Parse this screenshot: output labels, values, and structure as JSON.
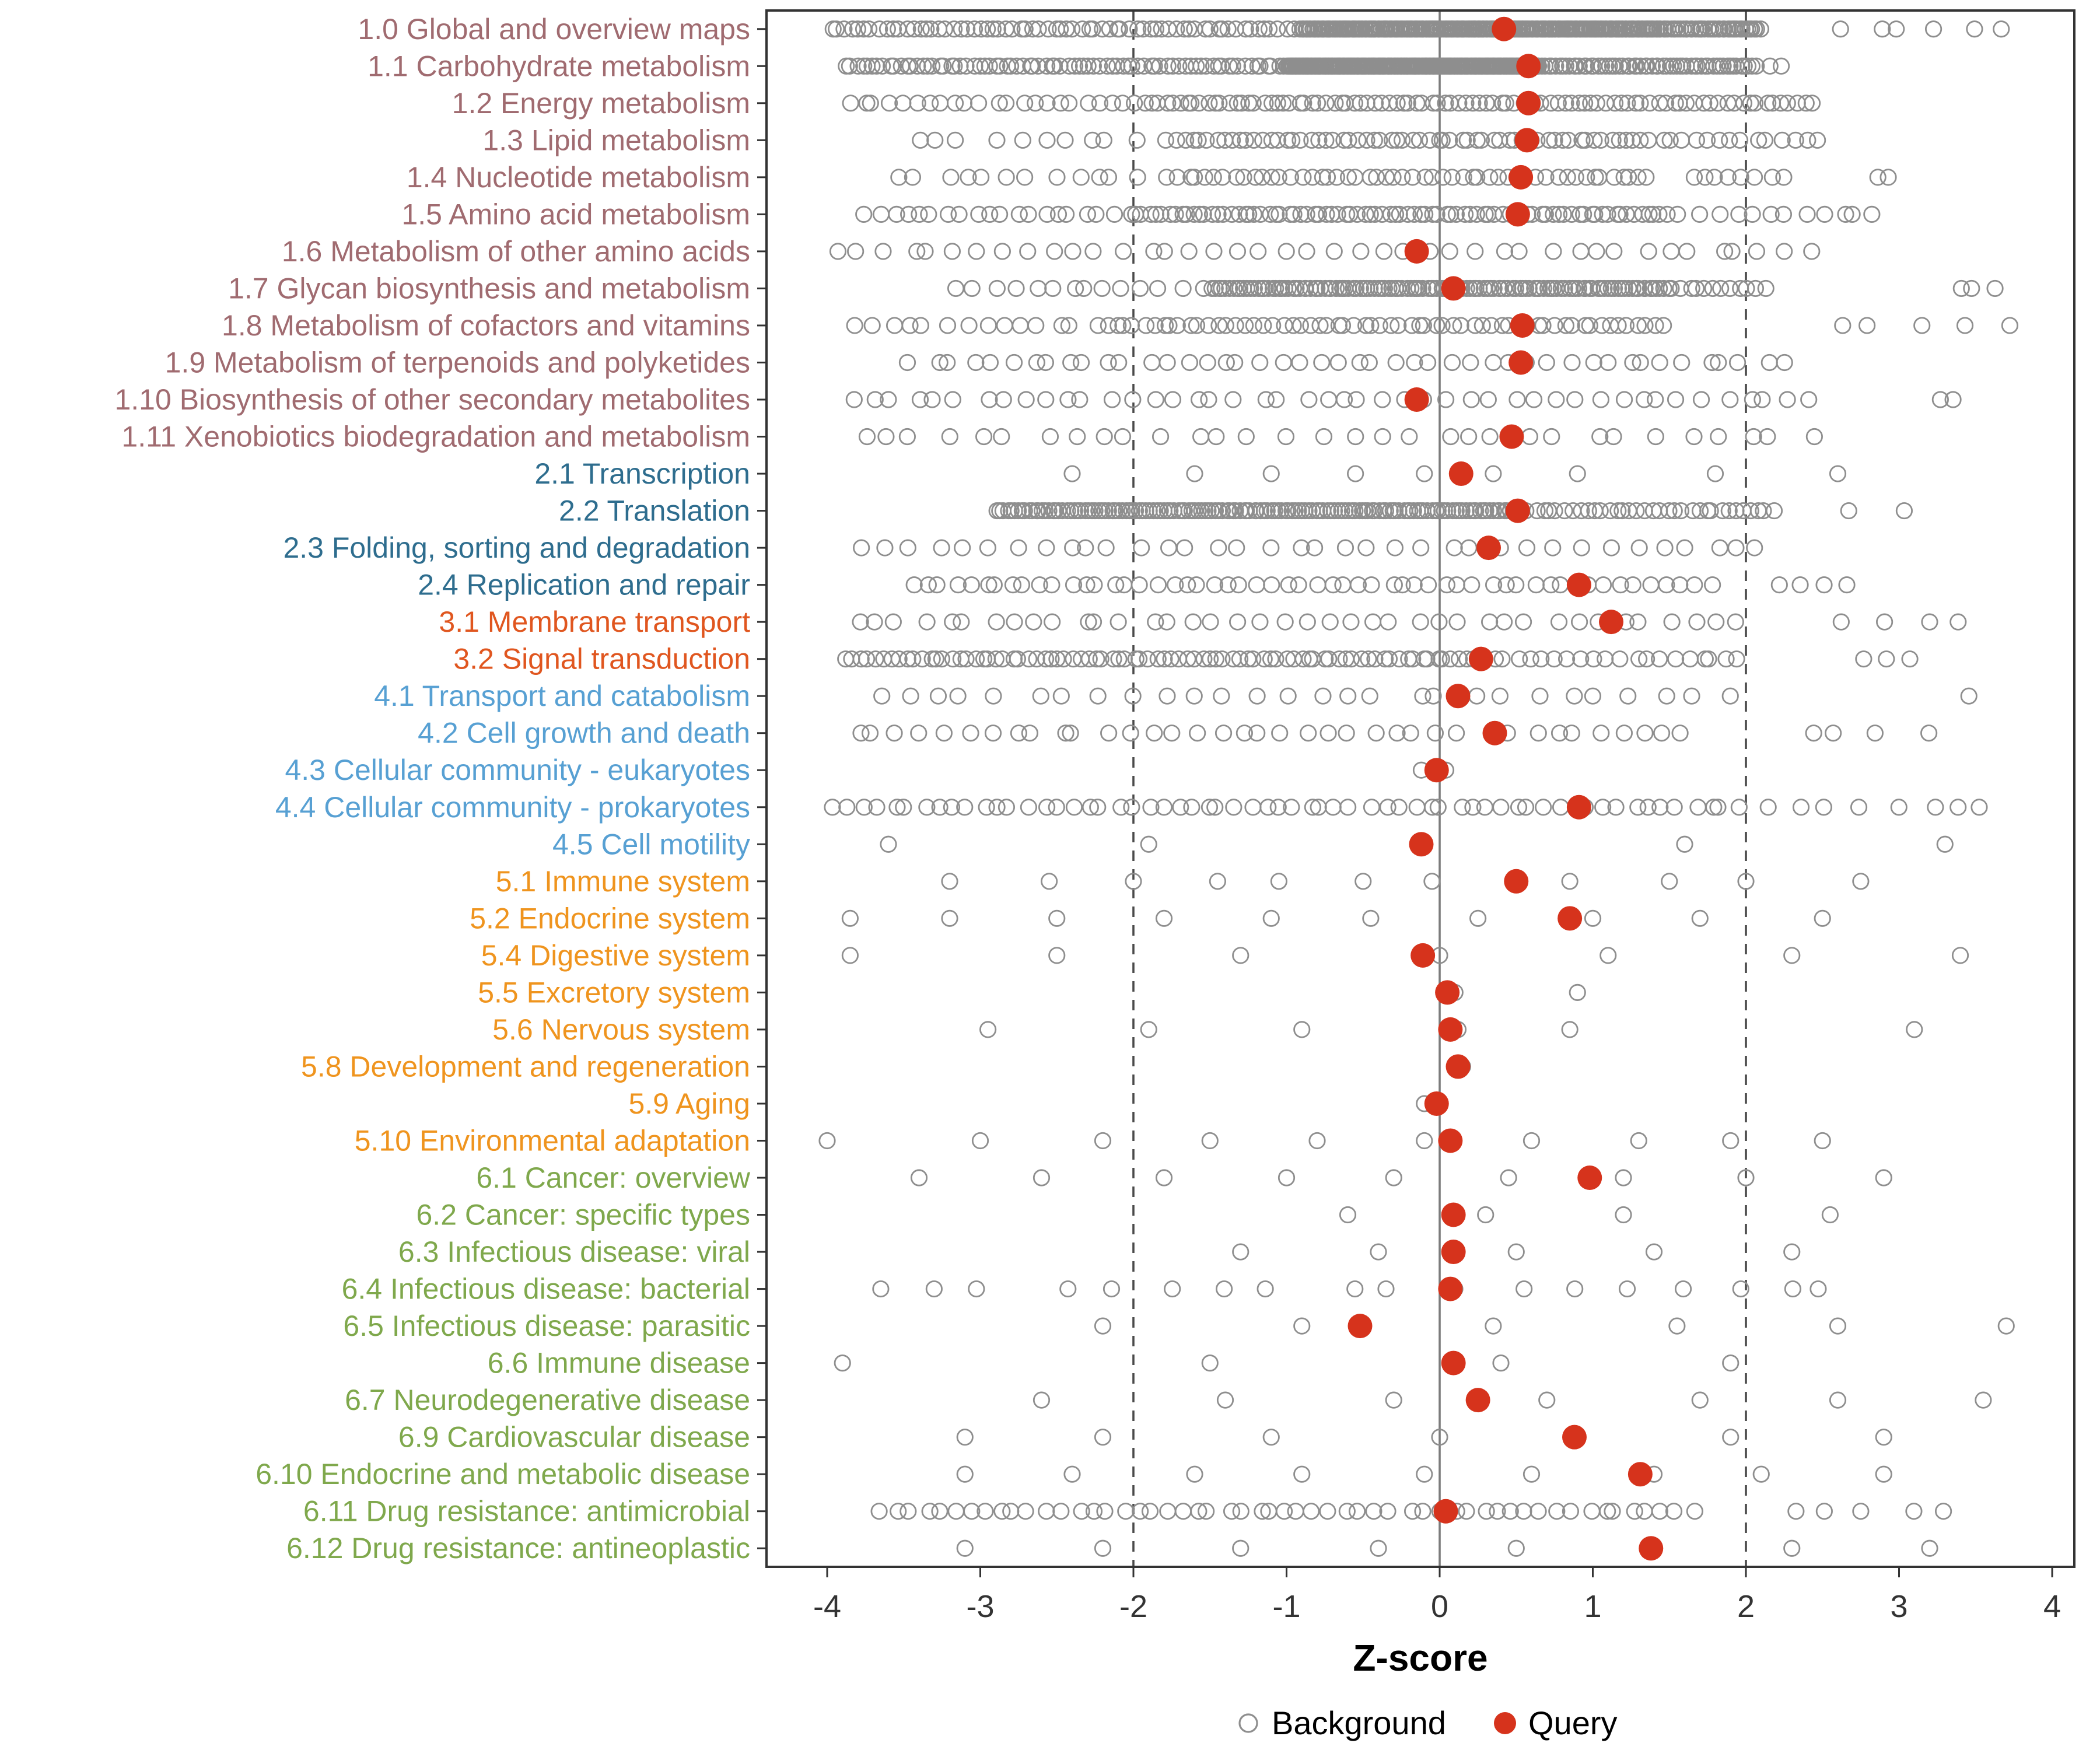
{
  "chart_data": {
    "type": "scatter",
    "title": "",
    "xlabel": "Z-score",
    "ylabel": "",
    "xlim": [
      -4.4,
      4.15
    ],
    "x_ticks": [
      "-4",
      "-3",
      "-2",
      "-1",
      "0",
      "1",
      "2",
      "3",
      "4"
    ],
    "reference_lines": {
      "solid": [
        0
      ],
      "dashed": [
        -2,
        2
      ]
    },
    "grid": false,
    "legend_position": "bottom",
    "legend": [
      {
        "label": "Background",
        "marker": "open-circle"
      },
      {
        "label": "Query",
        "marker": "filled-circle"
      }
    ],
    "colors": {
      "query": "#d6331c",
      "background_stroke": "#8e8e8e",
      "dashed_line": "#4a4a4a",
      "zero_line": "#7c7c7c",
      "panel_border": "#333333",
      "tick_label": "#333333",
      "axis_title": "#000000",
      "groups": {
        "1": "#a06b70",
        "2": "#2e6d8e",
        "3": "#e0561f",
        "4": "#57a0d3",
        "5": "#ef941e",
        "6": "#7fa84c"
      }
    },
    "rows": [
      {
        "label": "1.0 Global and overview maps",
        "group": "1",
        "query": 0.42,
        "bg_segments": [
          [
            70,
            -4.0,
            -0.9
          ],
          [
            220,
            -0.9,
            1.45
          ],
          [
            40,
            1.45,
            2.1
          ],
          [
            6,
            2.5,
            3.8
          ]
        ]
      },
      {
        "label": "1.1 Carbohydrate metabolism",
        "group": "1",
        "query": 0.58,
        "bg_segments": [
          [
            80,
            -3.9,
            -1.0
          ],
          [
            200,
            -1.0,
            0.65
          ],
          [
            60,
            0.65,
            2.05
          ],
          [
            3,
            2.05,
            2.3
          ]
        ]
      },
      {
        "label": "1.2 Energy metabolism",
        "group": "1",
        "query": 0.58,
        "bg_segments": [
          [
            22,
            -3.9,
            -2.0
          ],
          [
            70,
            -2.0,
            1.2
          ],
          [
            25,
            1.2,
            2.45
          ]
        ]
      },
      {
        "label": "1.3 Lipid metabolism",
        "group": "1",
        "query": 0.57,
        "bg_segments": [
          [
            10,
            -3.5,
            -1.9
          ],
          [
            62,
            -1.8,
            1.4
          ],
          [
            14,
            1.4,
            2.5
          ]
        ]
      },
      {
        "label": "1.4 Nucleotide metabolism",
        "group": "1",
        "query": 0.53,
        "bg_segments": [
          [
            12,
            -3.6,
            -1.9
          ],
          [
            52,
            -1.8,
            1.4
          ],
          [
            8,
            1.6,
            2.3
          ],
          [
            2,
            2.75,
            3.0
          ]
        ]
      },
      {
        "label": "1.5 Amino acid metabolism",
        "group": "1",
        "query": 0.51,
        "bg_segments": [
          [
            20,
            -3.8,
            -2.0
          ],
          [
            85,
            -2.0,
            1.5
          ],
          [
            12,
            1.5,
            2.9
          ]
        ]
      },
      {
        "label": "1.6 Metabolism of other amino acids",
        "group": "1",
        "query": -0.15,
        "bg_segments": [
          [
            42,
            -4.0,
            2.5
          ]
        ]
      },
      {
        "label": "1.7 Glycan biosynthesis and metabolism",
        "group": "1",
        "query": 0.09,
        "bg_segments": [
          [
            14,
            -3.2,
            -1.5
          ],
          [
            130,
            -1.5,
            1.5
          ],
          [
            12,
            1.5,
            2.15
          ],
          [
            3,
            3.3,
            3.75
          ]
        ]
      },
      {
        "label": "1.8 Metabolism of cofactors and vitamins",
        "group": "1",
        "query": 0.54,
        "bg_segments": [
          [
            14,
            -3.9,
            -2.2
          ],
          [
            62,
            -2.2,
            1.5
          ],
          [
            5,
            2.4,
            3.8
          ]
        ]
      },
      {
        "label": "1.9 Metabolism of terpenoids and polyketides",
        "group": "1",
        "query": 0.53,
        "bg_segments": [
          [
            46,
            -3.5,
            2.3
          ]
        ]
      },
      {
        "label": "1.10 Biosynthesis of other secondary metabolites",
        "group": "1",
        "query": -0.15,
        "bg_segments": [
          [
            46,
            -3.9,
            2.5
          ],
          [
            2,
            3.2,
            3.45
          ]
        ]
      },
      {
        "label": "1.11 Xenobiotics biodegradation and metabolism",
        "group": "1",
        "query": 0.47,
        "bg_segments": [
          [
            32,
            -3.9,
            2.5
          ]
        ]
      },
      {
        "label": "2.1 Transcription",
        "group": "2",
        "query": 0.14,
        "bg_xs": [
          -2.4,
          -1.6,
          -1.1,
          -0.55,
          -0.1,
          0.35,
          0.9,
          1.8,
          2.6
        ]
      },
      {
        "label": "2.2 Translation",
        "group": "2",
        "query": 0.51,
        "bg_segments": [
          [
            150,
            -2.9,
            0.5
          ],
          [
            35,
            0.5,
            2.2
          ],
          [
            2,
            2.6,
            3.2
          ]
        ]
      },
      {
        "label": "2.3 Folding, sorting and degradation",
        "group": "2",
        "query": 0.32,
        "bg_segments": [
          [
            36,
            -3.9,
            2.2
          ]
        ]
      },
      {
        "label": "2.4 Replication and repair",
        "group": "2",
        "query": 0.91,
        "bg_segments": [
          [
            56,
            -3.5,
            1.8
          ],
          [
            4,
            2.2,
            2.7
          ]
        ]
      },
      {
        "label": "3.1 Membrane transport",
        "group": "3",
        "query": 1.12,
        "bg_segments": [
          [
            40,
            -3.9,
            2.0
          ],
          [
            4,
            2.5,
            3.5
          ]
        ]
      },
      {
        "label": "3.2 Signal transduction",
        "group": "3",
        "query": 0.27,
        "bg_segments": [
          [
            85,
            -3.9,
            0.3
          ],
          [
            20,
            0.3,
            2.0
          ],
          [
            3,
            2.7,
            3.1
          ]
        ]
      },
      {
        "label": "4.1 Transport and catabolism",
        "group": "4",
        "query": 0.12,
        "bg_segments": [
          [
            28,
            -3.8,
            2.0
          ],
          [
            1,
            3.4,
            3.5
          ]
        ]
      },
      {
        "label": "4.2 Cell growth and death",
        "group": "4",
        "query": 0.36,
        "bg_segments": [
          [
            38,
            -3.9,
            1.7
          ],
          [
            4,
            2.2,
            3.3
          ]
        ]
      },
      {
        "label": "4.3 Cellular community - eukaryotes",
        "group": "4",
        "query": -0.02,
        "bg_xs": [
          -0.12,
          0.04
        ]
      },
      {
        "label": "4.4 Cellular community - prokaryotes",
        "group": "4",
        "query": 0.91,
        "bg_segments": [
          [
            62,
            -4.0,
            2.0
          ],
          [
            8,
            2.0,
            3.7
          ]
        ]
      },
      {
        "label": "4.5 Cell motility",
        "group": "4",
        "query": -0.12,
        "bg_xs": [
          -3.6,
          -1.9,
          1.6,
          3.3
        ]
      },
      {
        "label": "5.1 Immune system",
        "group": "5",
        "query": 0.5,
        "bg_xs": [
          -3.2,
          -2.55,
          -2.0,
          -1.45,
          -1.05,
          -0.5,
          -0.05,
          0.52,
          0.85,
          1.5,
          2.0,
          2.75
        ]
      },
      {
        "label": "5.2 Endocrine system",
        "group": "5",
        "query": 0.85,
        "bg_xs": [
          -3.85,
          -3.2,
          -2.5,
          -1.8,
          -1.1,
          -0.45,
          0.25,
          1.0,
          1.7,
          2.5
        ]
      },
      {
        "label": "5.4 Digestive system",
        "group": "5",
        "query": -0.11,
        "bg_xs": [
          -3.85,
          -2.5,
          -1.3,
          0.0,
          1.1,
          2.3,
          3.4
        ]
      },
      {
        "label": "5.5 Excretory system",
        "group": "5",
        "query": 0.05,
        "bg_xs": [
          0.1,
          0.9
        ]
      },
      {
        "label": "5.6 Nervous system",
        "group": "5",
        "query": 0.07,
        "bg_xs": [
          -2.95,
          -1.9,
          -0.9,
          0.12,
          0.85,
          3.1
        ]
      },
      {
        "label": "5.8 Development and regeneration",
        "group": "5",
        "query": 0.12,
        "bg_xs": [
          0.15
        ]
      },
      {
        "label": "5.9 Aging",
        "group": "5",
        "query": -0.02,
        "bg_xs": [
          -0.1
        ]
      },
      {
        "label": "5.10 Environmental adaptation",
        "group": "5",
        "query": 0.07,
        "bg_xs": [
          -4.0,
          -3.0,
          -2.2,
          -1.5,
          -0.8,
          -0.1,
          0.6,
          1.3,
          1.9,
          2.5
        ]
      },
      {
        "label": "6.1 Cancer: overview",
        "group": "6",
        "query": 0.98,
        "bg_xs": [
          -3.4,
          -2.6,
          -1.8,
          -1.0,
          -0.3,
          0.45,
          1.2,
          2.0,
          2.9
        ]
      },
      {
        "label": "6.2 Cancer: specific types",
        "group": "6",
        "query": 0.09,
        "bg_xs": [
          -0.6,
          0.3,
          1.2,
          2.55
        ]
      },
      {
        "label": "6.3 Infectious disease: viral",
        "group": "6",
        "query": 0.09,
        "bg_xs": [
          -1.3,
          -0.4,
          0.5,
          1.4,
          2.3
        ]
      },
      {
        "label": "6.4 Infectious disease: bacterial",
        "group": "6",
        "query": 0.07,
        "bg_segments": [
          [
            18,
            -3.8,
            2.8
          ]
        ]
      },
      {
        "label": "6.5 Infectious disease: parasitic",
        "group": "6",
        "query": -0.52,
        "bg_xs": [
          -2.2,
          -0.9,
          0.35,
          1.55,
          2.6,
          3.7
        ]
      },
      {
        "label": "6.6 Immune disease",
        "group": "6",
        "query": 0.09,
        "bg_xs": [
          -3.9,
          -1.5,
          0.4,
          1.9
        ]
      },
      {
        "label": "6.7 Neurodegenerative disease",
        "group": "6",
        "query": 0.25,
        "bg_xs": [
          -2.6,
          -1.4,
          -0.3,
          0.7,
          1.7,
          2.6,
          3.55
        ]
      },
      {
        "label": "6.9 Cardiovascular disease",
        "group": "6",
        "query": 0.88,
        "bg_xs": [
          -3.1,
          -2.2,
          -1.1,
          0.0,
          0.9,
          1.9,
          2.9
        ]
      },
      {
        "label": "6.10 Endocrine and metabolic disease",
        "group": "6",
        "query": 1.31,
        "bg_xs": [
          -3.1,
          -2.4,
          -1.6,
          -0.9,
          -0.1,
          0.6,
          1.4,
          2.1,
          2.9
        ]
      },
      {
        "label": "6.11 Drug resistance: antimicrobial",
        "group": "6",
        "query": 0.04,
        "bg_segments": [
          [
            55,
            -3.7,
            1.7
          ],
          [
            5,
            2.2,
            3.4
          ]
        ]
      },
      {
        "label": "6.12 Drug resistance: antineoplastic",
        "group": "6",
        "query": 1.38,
        "bg_xs": [
          -3.1,
          -2.2,
          -1.3,
          -0.4,
          0.5,
          1.4,
          2.3,
          3.2
        ]
      }
    ]
  }
}
